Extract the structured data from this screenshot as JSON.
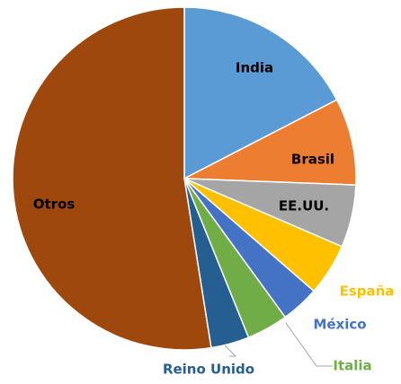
{
  "chart_data": {
    "type": "pie",
    "categories": [
      "India",
      "Brasil",
      "EE.UU.",
      "España",
      "México",
      "Italia",
      "Reino Unido",
      "Otros"
    ],
    "values": [
      17.4,
      8.2,
      5.9,
      4.9,
      3.6,
      3.9,
      3.6,
      52.5
    ],
    "colors": [
      "#5b9bd5",
      "#ed7d31",
      "#a5a5a5",
      "#ffc000",
      "#4472c4",
      "#70ad47",
      "#255e91",
      "#9e480e"
    ]
  }
}
